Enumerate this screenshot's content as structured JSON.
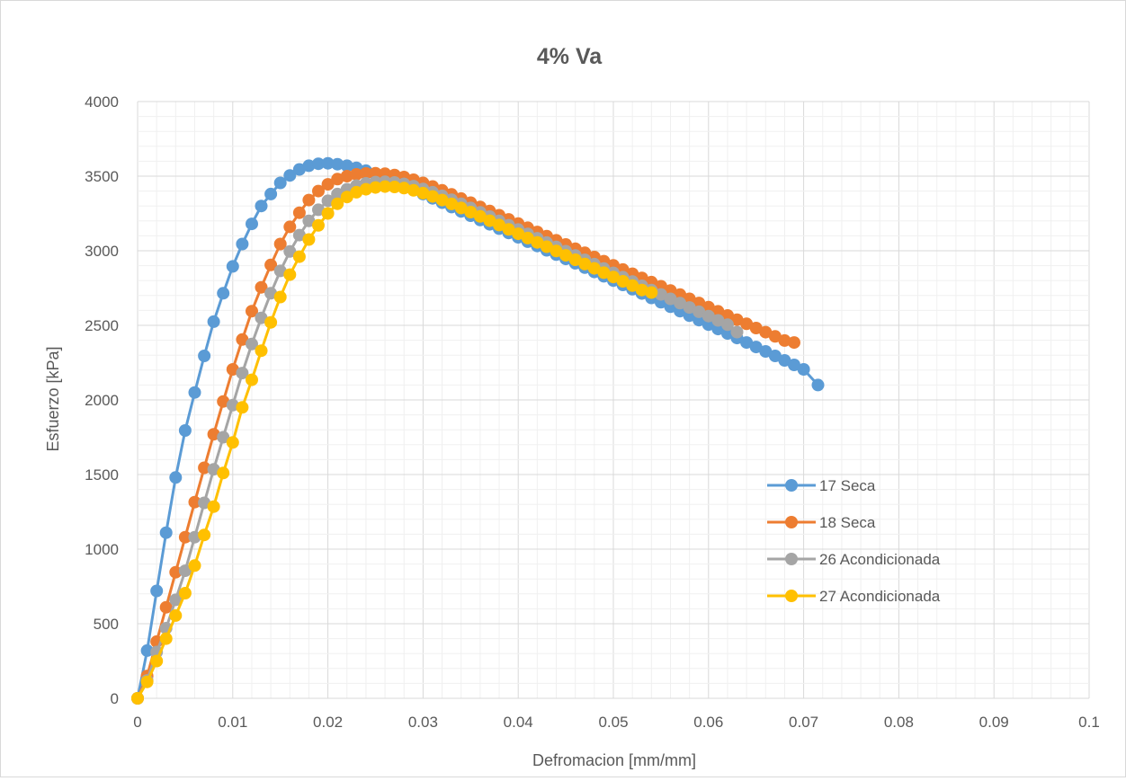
{
  "chart_data": {
    "type": "scatter",
    "title": "4% Va",
    "xlabel": "Defromacion  [mm/mm]",
    "ylabel": "Esfuerzo [kPa]",
    "xlim": [
      0,
      0.1
    ],
    "ylim": [
      0,
      4000
    ],
    "x_ticks": [
      "0",
      "0.01",
      "0.02",
      "0.03",
      "0.04",
      "0.05",
      "0.06",
      "0.07",
      "0.08",
      "0.09",
      "0.1"
    ],
    "y_ticks": [
      "0",
      "500",
      "1000",
      "1500",
      "2000",
      "2500",
      "3000",
      "3500",
      "4000"
    ],
    "grid": true,
    "legend_position": "right",
    "series": [
      {
        "name": "17 Seca",
        "color": "#5b9bd5",
        "points": [
          [
            0,
            0
          ],
          [
            0.001,
            320
          ],
          [
            0.002,
            720
          ],
          [
            0.003,
            1110
          ],
          [
            0.004,
            1480
          ],
          [
            0.005,
            1795
          ],
          [
            0.006,
            2050
          ],
          [
            0.007,
            2295
          ],
          [
            0.008,
            2525
          ],
          [
            0.009,
            2715
          ],
          [
            0.01,
            2895
          ],
          [
            0.011,
            3045
          ],
          [
            0.012,
            3180
          ],
          [
            0.013,
            3300
          ],
          [
            0.014,
            3380
          ],
          [
            0.015,
            3455
          ],
          [
            0.016,
            3505
          ],
          [
            0.017,
            3545
          ],
          [
            0.018,
            3570
          ],
          [
            0.019,
            3583
          ],
          [
            0.02,
            3586
          ],
          [
            0.021,
            3580
          ],
          [
            0.022,
            3570
          ],
          [
            0.023,
            3556
          ],
          [
            0.024,
            3537
          ],
          [
            0.025,
            3514
          ],
          [
            0.026,
            3490
          ],
          [
            0.027,
            3463
          ],
          [
            0.028,
            3436
          ],
          [
            0.029,
            3408
          ],
          [
            0.03,
            3380
          ],
          [
            0.031,
            3351
          ],
          [
            0.032,
            3322
          ],
          [
            0.033,
            3293
          ],
          [
            0.034,
            3264
          ],
          [
            0.035,
            3235
          ],
          [
            0.036,
            3206
          ],
          [
            0.037,
            3177
          ],
          [
            0.038,
            3148
          ],
          [
            0.039,
            3119
          ],
          [
            0.04,
            3090
          ],
          [
            0.041,
            3061
          ],
          [
            0.042,
            3032
          ],
          [
            0.043,
            3003
          ],
          [
            0.044,
            2974
          ],
          [
            0.045,
            2945
          ],
          [
            0.046,
            2916
          ],
          [
            0.047,
            2887
          ],
          [
            0.048,
            2858
          ],
          [
            0.049,
            2829
          ],
          [
            0.05,
            2800
          ],
          [
            0.051,
            2771
          ],
          [
            0.052,
            2742
          ],
          [
            0.053,
            2713
          ],
          [
            0.054,
            2684
          ],
          [
            0.055,
            2655
          ],
          [
            0.056,
            2625
          ],
          [
            0.057,
            2595
          ],
          [
            0.058,
            2565
          ],
          [
            0.059,
            2535
          ],
          [
            0.06,
            2505
          ],
          [
            0.061,
            2475
          ],
          [
            0.062,
            2445
          ],
          [
            0.063,
            2415
          ],
          [
            0.064,
            2385
          ],
          [
            0.065,
            2355
          ],
          [
            0.066,
            2325
          ],
          [
            0.067,
            2295
          ],
          [
            0.068,
            2265
          ],
          [
            0.069,
            2235
          ],
          [
            0.07,
            2205
          ],
          [
            0.0715,
            2100
          ]
        ]
      },
      {
        "name": "18 Seca",
        "color": "#ed7d31",
        "points": [
          [
            0,
            0
          ],
          [
            0.001,
            150
          ],
          [
            0.002,
            380
          ],
          [
            0.003,
            610
          ],
          [
            0.004,
            845
          ],
          [
            0.005,
            1080
          ],
          [
            0.006,
            1315
          ],
          [
            0.007,
            1545
          ],
          [
            0.008,
            1770
          ],
          [
            0.009,
            1990
          ],
          [
            0.01,
            2205
          ],
          [
            0.011,
            2405
          ],
          [
            0.012,
            2595
          ],
          [
            0.013,
            2755
          ],
          [
            0.014,
            2905
          ],
          [
            0.015,
            3045
          ],
          [
            0.016,
            3160
          ],
          [
            0.017,
            3255
          ],
          [
            0.018,
            3340
          ],
          [
            0.019,
            3400
          ],
          [
            0.02,
            3445
          ],
          [
            0.021,
            3480
          ],
          [
            0.022,
            3500
          ],
          [
            0.023,
            3512
          ],
          [
            0.024,
            3518
          ],
          [
            0.025,
            3520
          ],
          [
            0.026,
            3516
          ],
          [
            0.027,
            3508
          ],
          [
            0.028,
            3494
          ],
          [
            0.029,
            3476
          ],
          [
            0.03,
            3455
          ],
          [
            0.031,
            3431
          ],
          [
            0.032,
            3405
          ],
          [
            0.033,
            3378
          ],
          [
            0.034,
            3350
          ],
          [
            0.035,
            3322
          ],
          [
            0.036,
            3294
          ],
          [
            0.037,
            3266
          ],
          [
            0.038,
            3238
          ],
          [
            0.039,
            3210
          ],
          [
            0.04,
            3182
          ],
          [
            0.041,
            3154
          ],
          [
            0.042,
            3126
          ],
          [
            0.043,
            3098
          ],
          [
            0.044,
            3070
          ],
          [
            0.045,
            3042
          ],
          [
            0.046,
            3014
          ],
          [
            0.047,
            2986
          ],
          [
            0.048,
            2958
          ],
          [
            0.049,
            2930
          ],
          [
            0.05,
            2902
          ],
          [
            0.051,
            2874
          ],
          [
            0.052,
            2846
          ],
          [
            0.053,
            2818
          ],
          [
            0.054,
            2790
          ],
          [
            0.055,
            2762
          ],
          [
            0.056,
            2734
          ],
          [
            0.057,
            2706
          ],
          [
            0.058,
            2678
          ],
          [
            0.059,
            2650
          ],
          [
            0.06,
            2622
          ],
          [
            0.061,
            2594
          ],
          [
            0.062,
            2566
          ],
          [
            0.063,
            2538
          ],
          [
            0.064,
            2510
          ],
          [
            0.065,
            2482
          ],
          [
            0.066,
            2454
          ],
          [
            0.067,
            2426
          ],
          [
            0.068,
            2398
          ],
          [
            0.069,
            2385
          ]
        ]
      },
      {
        "name": "26 Acondicionada",
        "color": "#a5a5a5",
        "points": [
          [
            0,
            0
          ],
          [
            0.001,
            120
          ],
          [
            0.002,
            310
          ],
          [
            0.003,
            470
          ],
          [
            0.004,
            660
          ],
          [
            0.005,
            855
          ],
          [
            0.006,
            1080
          ],
          [
            0.007,
            1310
          ],
          [
            0.008,
            1535
          ],
          [
            0.009,
            1750
          ],
          [
            0.01,
            1965
          ],
          [
            0.011,
            2180
          ],
          [
            0.012,
            2375
          ],
          [
            0.013,
            2550
          ],
          [
            0.014,
            2715
          ],
          [
            0.015,
            2865
          ],
          [
            0.016,
            2995
          ],
          [
            0.017,
            3105
          ],
          [
            0.018,
            3200
          ],
          [
            0.019,
            3275
          ],
          [
            0.02,
            3335
          ],
          [
            0.021,
            3380
          ],
          [
            0.022,
            3412
          ],
          [
            0.023,
            3436
          ],
          [
            0.024,
            3452
          ],
          [
            0.025,
            3460
          ],
          [
            0.026,
            3462
          ],
          [
            0.027,
            3458
          ],
          [
            0.028,
            3448
          ],
          [
            0.029,
            3433
          ],
          [
            0.03,
            3414
          ],
          [
            0.031,
            3392
          ],
          [
            0.032,
            3368
          ],
          [
            0.033,
            3342
          ],
          [
            0.034,
            3315
          ],
          [
            0.035,
            3287
          ],
          [
            0.036,
            3258
          ],
          [
            0.037,
            3229
          ],
          [
            0.038,
            3200
          ],
          [
            0.039,
            3171
          ],
          [
            0.04,
            3142
          ],
          [
            0.041,
            3113
          ],
          [
            0.042,
            3084
          ],
          [
            0.043,
            3055
          ],
          [
            0.044,
            3026
          ],
          [
            0.045,
            2997
          ],
          [
            0.046,
            2968
          ],
          [
            0.047,
            2939
          ],
          [
            0.048,
            2910
          ],
          [
            0.049,
            2881
          ],
          [
            0.05,
            2852
          ],
          [
            0.051,
            2823
          ],
          [
            0.052,
            2794
          ],
          [
            0.053,
            2765
          ],
          [
            0.054,
            2736
          ],
          [
            0.055,
            2707
          ],
          [
            0.056,
            2678
          ],
          [
            0.057,
            2649
          ],
          [
            0.058,
            2620
          ],
          [
            0.059,
            2591
          ],
          [
            0.06,
            2562
          ],
          [
            0.061,
            2533
          ],
          [
            0.062,
            2504
          ],
          [
            0.063,
            2455
          ]
        ]
      },
      {
        "name": "27 Acondicionada",
        "color": "#ffc000",
        "points": [
          [
            0,
            0
          ],
          [
            0.001,
            110
          ],
          [
            0.002,
            250
          ],
          [
            0.003,
            400
          ],
          [
            0.004,
            555
          ],
          [
            0.005,
            705
          ],
          [
            0.006,
            890
          ],
          [
            0.007,
            1095
          ],
          [
            0.008,
            1285
          ],
          [
            0.009,
            1510
          ],
          [
            0.01,
            1715
          ],
          [
            0.011,
            1950
          ],
          [
            0.012,
            2135
          ],
          [
            0.013,
            2330
          ],
          [
            0.014,
            2520
          ],
          [
            0.015,
            2690
          ],
          [
            0.016,
            2840
          ],
          [
            0.017,
            2960
          ],
          [
            0.018,
            3075
          ],
          [
            0.019,
            3170
          ],
          [
            0.02,
            3250
          ],
          [
            0.021,
            3315
          ],
          [
            0.022,
            3360
          ],
          [
            0.023,
            3392
          ],
          [
            0.024,
            3412
          ],
          [
            0.025,
            3424
          ],
          [
            0.026,
            3430
          ],
          [
            0.027,
            3428
          ],
          [
            0.028,
            3420
          ],
          [
            0.029,
            3405
          ],
          [
            0.03,
            3386
          ],
          [
            0.031,
            3364
          ],
          [
            0.032,
            3340
          ],
          [
            0.033,
            3314
          ],
          [
            0.034,
            3287
          ],
          [
            0.035,
            3259
          ],
          [
            0.036,
            3230
          ],
          [
            0.037,
            3201
          ],
          [
            0.038,
            3172
          ],
          [
            0.039,
            3143
          ],
          [
            0.04,
            3114
          ],
          [
            0.041,
            3085
          ],
          [
            0.042,
            3056
          ],
          [
            0.043,
            3027
          ],
          [
            0.044,
            2998
          ],
          [
            0.045,
            2969
          ],
          [
            0.046,
            2940
          ],
          [
            0.047,
            2911
          ],
          [
            0.048,
            2882
          ],
          [
            0.049,
            2853
          ],
          [
            0.05,
            2824
          ],
          [
            0.051,
            2795
          ],
          [
            0.052,
            2766
          ],
          [
            0.053,
            2737
          ],
          [
            0.054,
            2720
          ]
        ]
      }
    ]
  }
}
